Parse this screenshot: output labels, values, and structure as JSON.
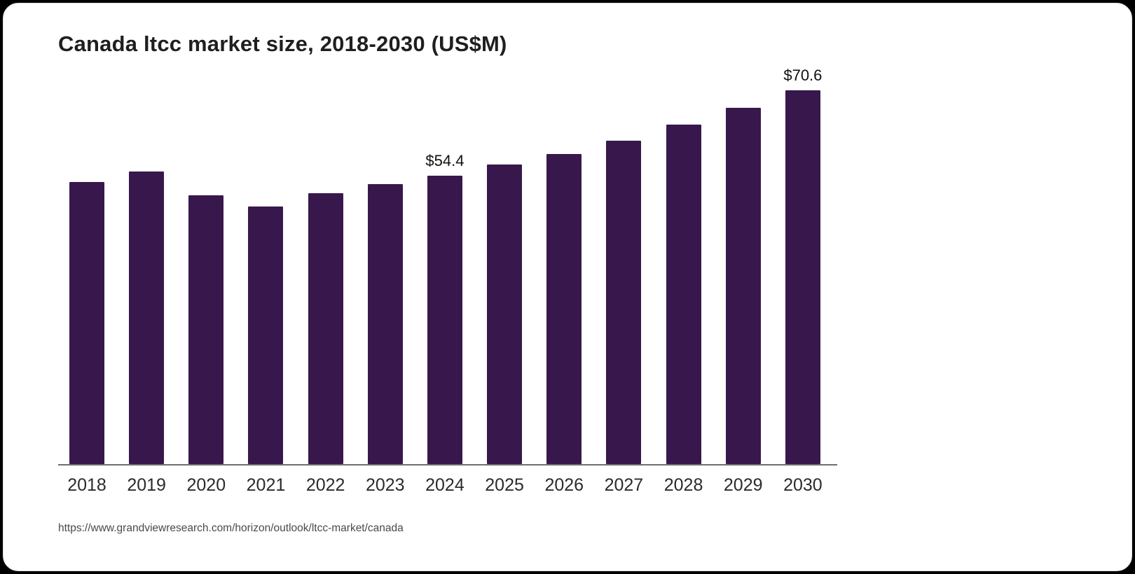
{
  "title": "Canada ltcc market size, 2018-2030 (US$M)",
  "source_url": "https://www.grandviewresearch.com/horizon/outlook/ltcc-market/canada",
  "chart_data": {
    "type": "bar",
    "title": "Canada ltcc market size, 2018-2030 (US$M)",
    "categories": [
      "2018",
      "2019",
      "2020",
      "2021",
      "2022",
      "2023",
      "2024",
      "2025",
      "2026",
      "2027",
      "2028",
      "2029",
      "2030"
    ],
    "values": [
      53.3,
      55.3,
      50.7,
      48.6,
      51.1,
      52.8,
      54.4,
      56.5,
      58.5,
      61.1,
      64.1,
      67.2,
      70.6
    ],
    "labels": [
      "",
      "",
      "",
      "",
      "",
      "",
      "$54.4",
      "",
      "",
      "",
      "",
      "",
      "$70.6"
    ],
    "xlabel": "",
    "ylabel": "",
    "ylim": [
      0,
      74
    ],
    "grid": false,
    "legend": false,
    "bar_color": "#38184c"
  }
}
